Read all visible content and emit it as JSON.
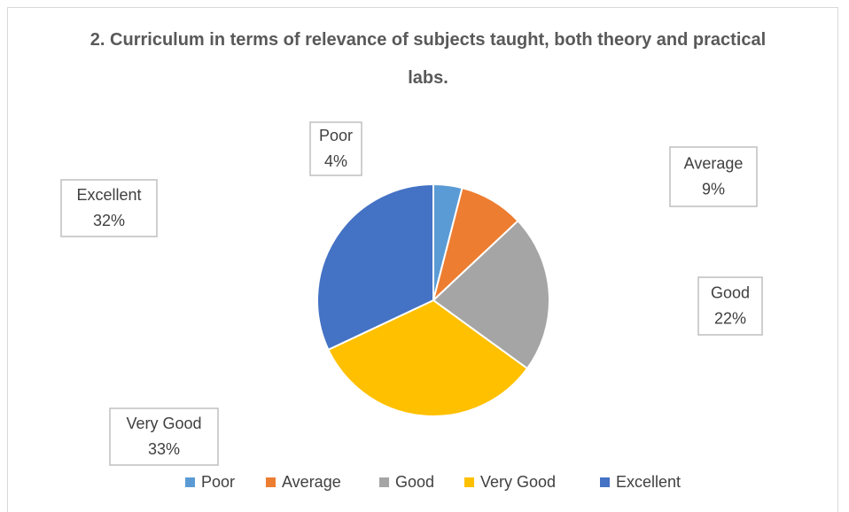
{
  "chart_data": {
    "type": "pie",
    "title": "2. Curriculum in terms of relevance of subjects taught, both theory and practical labs.",
    "categories": [
      "Poor",
      "Average",
      "Good",
      "Very Good",
      "Excellent"
    ],
    "values": [
      4,
      9,
      22,
      33,
      32
    ],
    "value_labels": [
      "4%",
      "9%",
      "22%",
      "33%",
      "32%"
    ],
    "colors": [
      "#5b9bd5",
      "#ed7d31",
      "#a5a5a5",
      "#ffc000",
      "#4472c4"
    ],
    "legend": "bottom"
  }
}
